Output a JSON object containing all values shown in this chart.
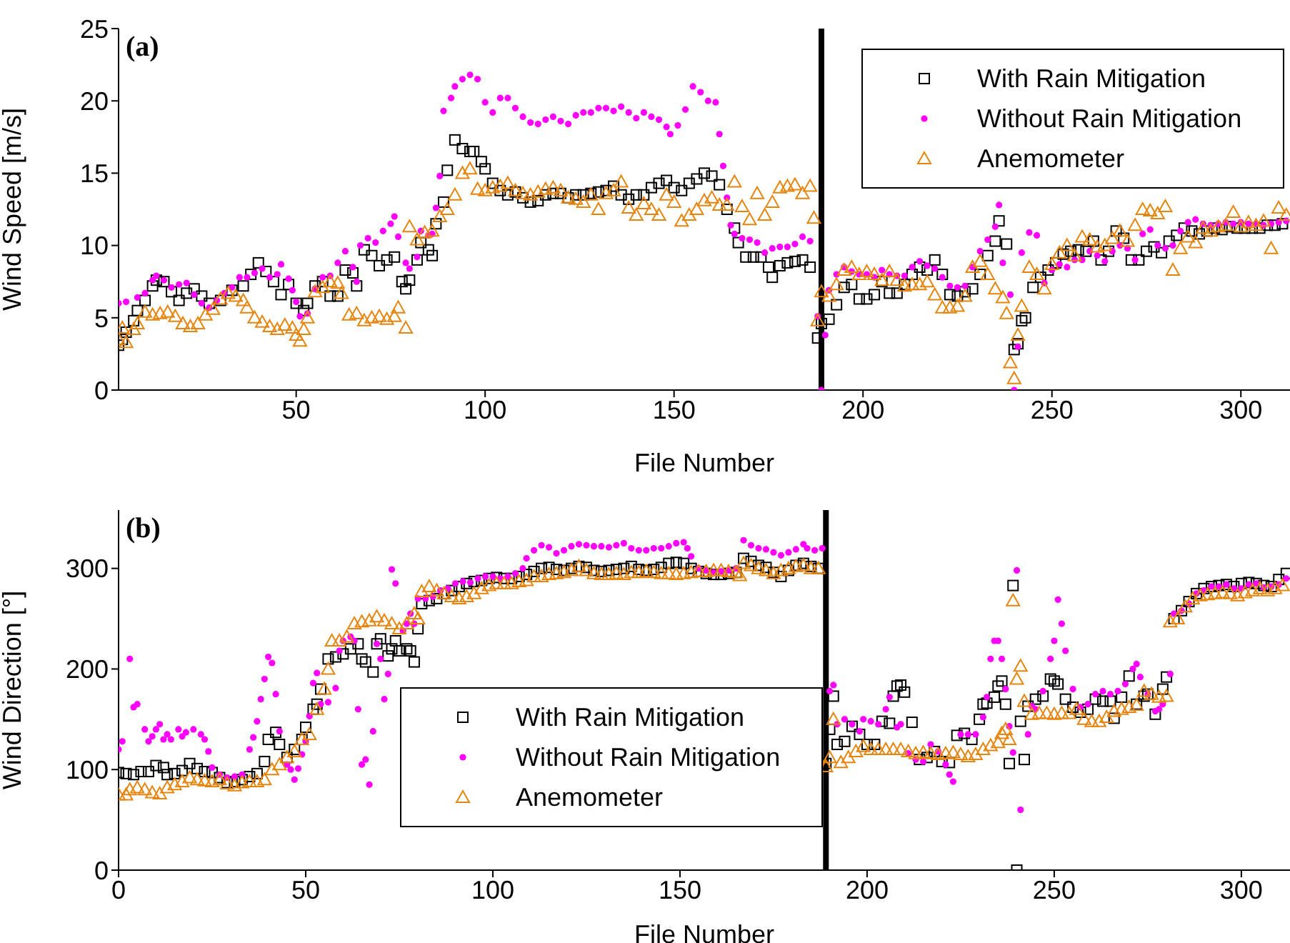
{
  "chart_data": [
    {
      "type": "scatter",
      "xlabel": "File Number",
      "ylabel": "Wind Speed [m/s]",
      "annotations": [
        "(a)"
      ],
      "xlim": [
        3,
        313
      ],
      "xticks": [
        50,
        100,
        150,
        200,
        250,
        300
      ],
      "ylim": [
        0,
        25
      ],
      "yticks": [
        0,
        5,
        10,
        15,
        20,
        25
      ],
      "legend": "top right",
      "ref_lines": [
        {
          "axis": "x",
          "value": 189,
          "color": "#000000"
        }
      ],
      "series": [
        {
          "name": "With Rain Mitigation",
          "color": "#000000",
          "marker": "square",
          "x": [
            3,
            4,
            5,
            7,
            8,
            10,
            12,
            13,
            15,
            17,
            19,
            21,
            23,
            25,
            27,
            30,
            33,
            36,
            38,
            40,
            42,
            44,
            46,
            48,
            50,
            52,
            53,
            55,
            57,
            59,
            61,
            63,
            65,
            66,
            68,
            70,
            72,
            74,
            76,
            78,
            79,
            80,
            82,
            83,
            85,
            86,
            87,
            89,
            90,
            92,
            94,
            96,
            97,
            99,
            100,
            102,
            104,
            106,
            108,
            110,
            112,
            114,
            116,
            118,
            120,
            122,
            124,
            126,
            128,
            130,
            132,
            134,
            136,
            138,
            140,
            142,
            144,
            146,
            148,
            150,
            152,
            154,
            156,
            158,
            160,
            162,
            164,
            166,
            167,
            169,
            171,
            173,
            175,
            176,
            178,
            180,
            182,
            184,
            186,
            188,
            189,
            191,
            193,
            195,
            197,
            199,
            201,
            203,
            205,
            207,
            209,
            211,
            213,
            215,
            217,
            219,
            221,
            223,
            225,
            227,
            229,
            231,
            233,
            235,
            236,
            238,
            240,
            241,
            242,
            243,
            245,
            247,
            249,
            251,
            253,
            255,
            257,
            259,
            261,
            263,
            265,
            267,
            269,
            271,
            273,
            275,
            277,
            279,
            281,
            283,
            285,
            287,
            289,
            291,
            293,
            295,
            297,
            299,
            301,
            303,
            305,
            307,
            309,
            311
          ],
          "values": [
            3.1,
            3.5,
            4,
            4.8,
            5.5,
            6.2,
            7.2,
            7.6,
            7.5,
            6.8,
            6.2,
            6.7,
            7,
            6.5,
            6.0,
            6.2,
            6.9,
            7.2,
            8.0,
            8.8,
            8.2,
            7.5,
            6.6,
            7.3,
            6.0,
            5.5,
            6,
            7.2,
            7.5,
            6.5,
            6.5,
            8.3,
            8.1,
            7.2,
            9.7,
            9.3,
            8.6,
            9.0,
            9.2,
            7.5,
            7.0,
            7.6,
            9.0,
            10.2,
            9.7,
            9.3,
            11.5,
            13,
            15.2,
            17.3,
            16.7,
            16.5,
            16.5,
            15.8,
            15.3,
            14.3,
            13.8,
            13.5,
            13.7,
            13.3,
            13.0,
            13.1,
            13.5,
            13.6,
            13.6,
            13.3,
            13.5,
            13.5,
            13.6,
            13.7,
            13.8,
            14.1,
            13.5,
            13.2,
            13.5,
            13.5,
            14.0,
            14.3,
            14.5,
            14.0,
            13.8,
            14.3,
            14.6,
            15,
            14.8,
            14.2,
            12.5,
            11.2,
            10.2,
            9.2,
            9.2,
            9.2,
            8.5,
            7.8,
            8.6,
            8.8,
            8.9,
            9.0,
            8.5,
            3.6,
            4.6,
            4.9,
            5.9,
            7.1,
            7.3,
            6.3,
            6.3,
            6.6,
            7.5,
            6.7,
            6.7,
            7.3,
            8.0,
            8.5,
            8.3,
            9.0,
            8.0,
            6.6,
            6.5,
            6.8,
            7.0,
            8.0,
            9.3,
            10.3,
            11.7,
            10.1,
            2.8,
            3.2,
            4.8,
            5.0,
            7.1,
            7.8,
            8.3,
            8.8,
            9.4,
            9.6,
            9.7,
            9.6,
            10.3,
            9.0,
            9.6,
            11.0,
            10.5,
            9.0,
            9.0,
            9.6,
            9.9,
            9.5,
            10.3,
            10.7,
            11.2,
            11.0,
            10.8,
            11.0,
            11.2,
            11.1,
            11.3,
            11.2,
            11.2,
            11.2,
            11.2,
            11.4,
            11.4,
            11.5
          ]
        },
        {
          "name": "Without Rain Mitigation",
          "color": "#ff00ff",
          "marker": "circle",
          "x": [
            3,
            5,
            8,
            10,
            12,
            13,
            15,
            17,
            19,
            21,
            23,
            25,
            27,
            29,
            31,
            33,
            35,
            37,
            39,
            41,
            43,
            45,
            46,
            48,
            49,
            50,
            51,
            53,
            55,
            57,
            59,
            61,
            63,
            65,
            66,
            67,
            69,
            71,
            73,
            75,
            76,
            77,
            79,
            80,
            82,
            83,
            85,
            86,
            87,
            88,
            89,
            91,
            92,
            94,
            96,
            98,
            100,
            102,
            104,
            106,
            108,
            110,
            112,
            114,
            116,
            118,
            120,
            122,
            124,
            126,
            128,
            130,
            132,
            134,
            136,
            138,
            140,
            142,
            144,
            146,
            148,
            149,
            151,
            153,
            155,
            157,
            159,
            161,
            162,
            163,
            164,
            165,
            166,
            168,
            170,
            172,
            174,
            176,
            178,
            180,
            182,
            184,
            186,
            188,
            189,
            190,
            191,
            193,
            195,
            197,
            199,
            201,
            203,
            205,
            207,
            209,
            211,
            213,
            215,
            217,
            219,
            221,
            223,
            225,
            227,
            229,
            231,
            233,
            235,
            236,
            237,
            239,
            240,
            241,
            242,
            244,
            246,
            248,
            250,
            252,
            254,
            256,
            258,
            260,
            262,
            264,
            266,
            268,
            270,
            272,
            274,
            276,
            278,
            280,
            282,
            284,
            286,
            288,
            290,
            292,
            294,
            296,
            298,
            300,
            302,
            304,
            306,
            308,
            310,
            312
          ],
          "values": [
            6.0,
            6.1,
            6.4,
            6.7,
            7.6,
            7.9,
            7.6,
            7.1,
            7.3,
            7.4,
            6.6,
            6.0,
            5.7,
            6.2,
            6.7,
            7.1,
            7.8,
            7.8,
            8.1,
            8.4,
            7.8,
            8.0,
            8.7,
            7.7,
            6.9,
            6.1,
            5.1,
            5.3,
            7.0,
            7.8,
            7.9,
            8.8,
            9.6,
            8.5,
            7.5,
            10.0,
            10.5,
            10.2,
            11.0,
            11.5,
            12.0,
            10.6,
            8.8,
            8.4,
            9.2,
            11.0,
            10.7,
            10.8,
            12.6,
            14.8,
            19.3,
            20.2,
            21.0,
            21.5,
            21.8,
            21.5,
            19.9,
            19.2,
            20.2,
            20.2,
            19.5,
            18.9,
            18.5,
            18.4,
            18.7,
            18.9,
            18.6,
            18.4,
            19.0,
            19.2,
            19.2,
            19.5,
            19.5,
            19.3,
            19.6,
            19.2,
            18.8,
            19.2,
            18.9,
            18.7,
            18.2,
            17.7,
            18.3,
            19.4,
            21.0,
            20.6,
            20.0,
            19.9,
            17.7,
            15.5,
            13.3,
            11.4,
            10.8,
            10.5,
            10.4,
            10.2,
            9.5,
            9.8,
            9.9,
            9.9,
            10.1,
            10.6,
            10.3,
            5.1,
            0,
            3.8,
            6.9,
            8.0,
            8.5,
            8.2,
            8.0,
            8.0,
            7.8,
            8.3,
            8.0,
            7.9,
            7.9,
            8.5,
            8.9,
            8.6,
            8.4,
            7.8,
            7.2,
            7.1,
            7.2,
            8.5,
            9.6,
            10.4,
            11.3,
            12.8,
            8.8,
            6.6,
            0,
            3.0,
            9.5,
            10.9,
            10.7,
            7.4,
            8.3,
            8.7,
            8.5,
            9.0,
            9.0,
            9.6,
            9.3,
            8.9,
            9.6,
            10.0,
            9.8,
            9.0,
            10.8,
            11.1,
            10.0,
            9.8,
            10.0,
            11.0,
            11.6,
            11.8,
            11.5,
            11.4,
            11.5,
            11.6,
            11.5,
            11.6,
            11.5,
            11.5,
            11.4,
            11.5,
            11.6,
            11.7
          ]
        },
        {
          "name": "Anemometer",
          "color": "#e6850e",
          "marker": "triangle",
          "x": [
            3,
            4,
            5,
            7,
            8,
            10,
            12,
            14,
            16,
            18,
            20,
            22,
            24,
            26,
            28,
            30,
            32,
            34,
            36,
            37,
            39,
            41,
            43,
            45,
            47,
            49,
            50,
            51,
            52,
            53,
            55,
            57,
            59,
            61,
            62,
            64,
            66,
            68,
            70,
            72,
            74,
            76,
            77,
            79,
            80,
            82,
            84,
            86,
            88,
            90,
            92,
            94,
            96,
            98,
            100,
            102,
            104,
            106,
            108,
            110,
            112,
            114,
            116,
            118,
            120,
            122,
            124,
            126,
            128,
            130,
            132,
            134,
            136,
            138,
            140,
            142,
            144,
            146,
            148,
            150,
            152,
            154,
            156,
            158,
            160,
            162,
            164,
            166,
            168,
            170,
            172,
            174,
            176,
            178,
            180,
            182,
            184,
            186,
            187,
            188,
            189,
            191,
            193,
            195,
            197,
            199,
            201,
            203,
            205,
            207,
            209,
            211,
            213,
            215,
            217,
            219,
            221,
            223,
            225,
            227,
            229,
            231,
            233,
            235,
            237,
            238,
            239,
            240,
            241,
            242,
            244,
            246,
            248,
            250,
            252,
            254,
            256,
            258,
            260,
            262,
            264,
            266,
            268,
            270,
            272,
            274,
            276,
            278,
            280,
            282,
            284,
            286,
            288,
            290,
            292,
            294,
            296,
            298,
            300,
            302,
            304,
            306,
            308,
            310,
            312
          ],
          "values": [
            3.5,
            4.3,
            3.3,
            4.2,
            4.6,
            5.4,
            5.2,
            5.3,
            5.4,
            5.1,
            4.6,
            4.4,
            4.6,
            5.2,
            5.6,
            6.3,
            6.7,
            6.5,
            6.2,
            5.7,
            5.0,
            4.7,
            4.4,
            4.2,
            4.5,
            4.3,
            3.8,
            3.4,
            4.2,
            5.0,
            6.8,
            7.1,
            7.5,
            7.4,
            6.7,
            5.2,
            5.3,
            4.8,
            5.0,
            5.1,
            4.9,
            5.1,
            5.7,
            4.3,
            11.3,
            10.4,
            10.9,
            11.0,
            12.0,
            12.5,
            13.5,
            15.0,
            15.3,
            13.9,
            13.8,
            14.0,
            14.1,
            14.3,
            13.8,
            13.6,
            13.5,
            13.7,
            13.9,
            14.0,
            13.8,
            13.3,
            13.2,
            13.0,
            13.5,
            12.5,
            13.6,
            13.8,
            14.4,
            12.6,
            12.1,
            12.9,
            12.5,
            12.1,
            13.5,
            13.0,
            11.7,
            12.1,
            12.5,
            13.1,
            13.3,
            12.8,
            12.8,
            14.4,
            12.7,
            11.8,
            13.6,
            12.1,
            13.0,
            14.0,
            14.1,
            14.2,
            13.6,
            14.1,
            11.9,
            4.8,
            6.8,
            6.5,
            7.3,
            8.3,
            8.5,
            8.0,
            8.2,
            8.0,
            7.6,
            8.2,
            7.6,
            7.2,
            7.3,
            7.3,
            7.5,
            6.6,
            5.7,
            5.7,
            5.8,
            6.5,
            8.5,
            8.9,
            8.0,
            7.0,
            6.4,
            5.3,
            1.9,
            0.8,
            3.8,
            5.8,
            8.5,
            8.0,
            7.0,
            8.7,
            9.5,
            10.0,
            9.3,
            10.6,
            10.4,
            9.9,
            10.0,
            10.5,
            11.0,
            10.3,
            11.4,
            12.5,
            12.4,
            12.2,
            12.7,
            8.3,
            9.8,
            10.6,
            10.2,
            11.2,
            11.0,
            11.3,
            11.4,
            12.3,
            11.3,
            11.6,
            11.4,
            11.7,
            9.8,
            12.6,
            12.1
          ]
        }
      ]
    },
    {
      "type": "scatter",
      "xlabel": "File Number",
      "ylabel": "Wind Direction [°]",
      "annotations": [
        "(b)"
      ],
      "xlim": [
        0,
        313
      ],
      "xticks": [
        0,
        50,
        100,
        150,
        200,
        250,
        300
      ],
      "ylim": [
        0,
        358
      ],
      "yticks": [
        0,
        100,
        200,
        300
      ],
      "legend": "bottom",
      "ref_lines": [
        {
          "axis": "x",
          "value": 189,
          "color": "#000000"
        }
      ],
      "series": [
        {
          "name": "With Rain Mitigation",
          "color": "#000000",
          "marker": "square",
          "x": [
            0,
            2,
            4,
            6,
            8,
            10,
            12,
            13,
            15,
            17,
            19,
            21,
            23,
            25,
            27,
            29,
            31,
            33,
            35,
            37,
            39,
            40,
            42,
            43,
            45,
            47,
            49,
            50,
            52,
            53,
            54,
            56,
            58,
            60,
            62,
            64,
            65,
            66,
            68,
            69,
            70,
            72,
            73,
            74,
            75,
            77,
            78,
            79,
            80,
            81,
            83,
            85,
            87,
            89,
            91,
            93,
            95,
            97,
            99,
            101,
            103,
            105,
            107,
            109,
            111,
            113,
            115,
            117,
            119,
            121,
            123,
            125,
            127,
            129,
            131,
            133,
            135,
            137,
            139,
            141,
            143,
            145,
            147,
            149,
            151,
            153,
            155,
            157,
            159,
            161,
            163,
            165,
            167,
            169,
            171,
            173,
            175,
            177,
            179,
            181,
            183,
            185,
            187,
            189,
            190,
            191,
            192,
            194,
            196,
            198,
            200,
            202,
            204,
            206,
            207,
            208,
            209,
            210,
            212,
            214,
            216,
            218,
            220,
            222,
            224,
            226,
            228,
            230,
            231,
            232,
            234,
            235,
            236,
            237,
            238,
            239,
            240,
            241,
            242,
            243,
            245,
            247,
            249,
            250,
            251,
            253,
            255,
            257,
            259,
            261,
            263,
            265,
            266,
            268,
            270,
            272,
            274,
            275,
            277,
            279,
            280,
            282,
            284,
            286,
            288,
            290,
            292,
            294,
            296,
            298,
            300,
            302,
            304,
            306,
            308,
            310,
            312
          ],
          "values": [
            97,
            96,
            95,
            98,
            98,
            104,
            102,
            95,
            96,
            99,
            106,
            101,
            98,
            97,
            92,
            87,
            88,
            90,
            93,
            96,
            108,
            130,
            137,
            125,
            112,
            120,
            130,
            142,
            160,
            165,
            180,
            210,
            212,
            215,
            220,
            225,
            210,
            207,
            197,
            225,
            230,
            213,
            220,
            228,
            218,
            220,
            218,
            207,
            240,
            265,
            268,
            270,
            275,
            278,
            282,
            285,
            287,
            288,
            290,
            291,
            290,
            290,
            292,
            294,
            297,
            300,
            301,
            299,
            298,
            300,
            302,
            301,
            298,
            297,
            298,
            299,
            300,
            302,
            299,
            298,
            299,
            301,
            305,
            306,
            305,
            300,
            297,
            295,
            294,
            294,
            295,
            296,
            310,
            307,
            303,
            301,
            296,
            292,
            298,
            303,
            305,
            302,
            300,
            106,
            140,
            173,
            125,
            128,
            143,
            135,
            125,
            125,
            148,
            146,
            173,
            183,
            184,
            177,
            147,
            110,
            112,
            118,
            108,
            107,
            134,
            136,
            130,
            150,
            165,
            166,
            172,
            183,
            188,
            165,
            106,
            283,
            0,
            148,
            110,
            163,
            170,
            173,
            190,
            188,
            185,
            170,
            162,
            157,
            160,
            170,
            168,
            168,
            151,
            172,
            193,
            165,
            173,
            175,
            155,
            180,
            192,
            250,
            258,
            267,
            275,
            280,
            282,
            283,
            284,
            282,
            285,
            286,
            285,
            283,
            282,
            289,
            295
          ]
        },
        {
          "name": "Without Rain Mitigation",
          "color": "#ff00ff",
          "marker": "circle",
          "x": [
            0,
            1,
            3,
            4,
            5,
            7,
            8,
            9,
            10,
            11,
            12,
            13,
            14,
            16,
            17,
            18,
            20,
            22,
            23,
            24,
            25,
            27,
            29,
            31,
            33,
            35,
            36,
            37,
            38,
            39,
            40,
            41,
            42,
            43,
            45,
            46,
            47,
            48,
            49,
            50,
            51,
            52,
            53,
            54,
            56,
            58,
            59,
            60,
            62,
            63,
            64,
            65,
            66,
            67,
            68,
            69,
            70,
            71,
            72,
            73,
            74,
            76,
            77,
            78,
            79,
            80,
            82,
            84,
            86,
            88,
            90,
            92,
            94,
            96,
            98,
            100,
            102,
            104,
            106,
            108,
            109,
            111,
            113,
            115,
            117,
            119,
            121,
            123,
            125,
            127,
            129,
            131,
            133,
            135,
            137,
            139,
            141,
            143,
            145,
            147,
            149,
            151,
            152,
            153,
            155,
            157,
            159,
            161,
            163,
            165,
            167,
            169,
            171,
            173,
            175,
            177,
            179,
            181,
            183,
            184,
            186,
            188,
            190,
            191,
            192,
            194,
            196,
            198,
            199,
            201,
            203,
            205,
            206,
            208,
            209,
            211,
            213,
            215,
            217,
            219,
            221,
            222,
            223,
            225,
            227,
            229,
            231,
            232,
            233,
            234,
            235,
            236,
            237,
            238,
            239,
            240,
            241,
            243,
            244,
            245,
            247,
            249,
            250,
            251,
            252,
            253,
            255,
            257,
            259,
            261,
            263,
            265,
            267,
            269,
            271,
            272,
            273,
            275,
            277,
            278,
            279,
            281,
            282,
            284,
            286,
            288,
            290,
            292,
            294,
            296,
            298,
            300,
            302,
            304,
            306,
            308,
            310,
            312
          ],
          "values": [
            120,
            128,
            210,
            162,
            165,
            140,
            128,
            133,
            140,
            145,
            130,
            135,
            130,
            140,
            133,
            137,
            140,
            135,
            130,
            118,
            102,
            95,
            92,
            93,
            95,
            120,
            132,
            148,
            170,
            190,
            212,
            206,
            175,
            138,
            105,
            100,
            90,
            101,
            115,
            128,
            153,
            186,
            196,
            165,
            167,
            181,
            218,
            228,
            232,
            228,
            160,
            105,
            110,
            85,
            138,
            225,
            210,
            170,
            195,
            299,
            285,
            238,
            245,
            255,
            245,
            270,
            270,
            272,
            278,
            280,
            285,
            287,
            286,
            290,
            292,
            292,
            290,
            292,
            295,
            300,
            310,
            318,
            323,
            321,
            315,
            318,
            322,
            324,
            323,
            322,
            322,
            321,
            323,
            325,
            320,
            318,
            318,
            320,
            320,
            322,
            325,
            326,
            320,
            312,
            300,
            298,
            296,
            297,
            298,
            300,
            328,
            323,
            320,
            319,
            316,
            313,
            316,
            319,
            324,
            320,
            318,
            320,
            178,
            184,
            145,
            150,
            145,
            138,
            150,
            148,
            145,
            160,
            172,
            142,
            145,
            116,
            110,
            108,
            125,
            118,
            105,
            95,
            88,
            135,
            135,
            135,
            152,
            172,
            210,
            228,
            228,
            210,
            180,
            143,
            117,
            298,
            60,
            135,
            163,
            160,
            178,
            210,
            228,
            269,
            245,
            218,
            180,
            162,
            165,
            175,
            178,
            175,
            178,
            185,
            200,
            205,
            192,
            175,
            158,
            160,
            165,
            195,
            255,
            258,
            265,
            275,
            278,
            282,
            282,
            284,
            280,
            280,
            284,
            285,
            281,
            282,
            284,
            290
          ]
        },
        {
          "name": "Anemometer",
          "color": "#e6850e",
          "marker": "triangle",
          "x": [
            0,
            2,
            3,
            5,
            7,
            9,
            11,
            13,
            15,
            17,
            19,
            21,
            23,
            25,
            27,
            29,
            31,
            33,
            35,
            37,
            39,
            41,
            43,
            45,
            47,
            49,
            51,
            53,
            55,
            56,
            57,
            59,
            61,
            63,
            65,
            67,
            69,
            71,
            73,
            75,
            77,
            79,
            80,
            81,
            83,
            85,
            87,
            89,
            91,
            93,
            95,
            97,
            99,
            101,
            103,
            105,
            107,
            109,
            111,
            113,
            115,
            117,
            119,
            121,
            123,
            125,
            127,
            129,
            131,
            133,
            135,
            137,
            139,
            141,
            143,
            145,
            147,
            149,
            151,
            153,
            155,
            157,
            159,
            161,
            163,
            165,
            166,
            167,
            169,
            171,
            173,
            175,
            177,
            179,
            181,
            183,
            185,
            187,
            189,
            190,
            191,
            193,
            195,
            197,
            199,
            201,
            203,
            205,
            207,
            209,
            211,
            213,
            215,
            217,
            219,
            221,
            223,
            225,
            227,
            229,
            231,
            233,
            235,
            236,
            237,
            238,
            239,
            240,
            241,
            242,
            244,
            246,
            248,
            250,
            252,
            254,
            256,
            258,
            260,
            262,
            264,
            266,
            268,
            270,
            272,
            274,
            276,
            278,
            280,
            281,
            283,
            285,
            287,
            289,
            291,
            293,
            295,
            297,
            299,
            301,
            303,
            305,
            307,
            309,
            311
          ],
          "values": [
            75,
            75,
            80,
            82,
            80,
            77,
            76,
            82,
            85,
            88,
            92,
            90,
            89,
            88,
            90,
            86,
            84,
            87,
            88,
            88,
            90,
            100,
            105,
            112,
            118,
            130,
            135,
            160,
            180,
            200,
            228,
            228,
            232,
            245,
            247,
            248,
            252,
            248,
            245,
            240,
            245,
            255,
            250,
            277,
            282,
            278,
            275,
            272,
            270,
            272,
            275,
            280,
            283,
            285,
            285,
            285,
            287,
            288,
            292,
            292,
            294,
            295,
            296,
            298,
            302,
            298,
            295,
            294,
            294,
            295,
            294,
            296,
            296,
            297,
            296,
            295,
            295,
            294,
            295,
            296,
            297,
            297,
            298,
            298,
            297,
            296,
            293,
            305,
            303,
            300,
            298,
            295,
            298,
            300,
            302,
            303,
            300,
            300,
            103,
            112,
            150,
            107,
            112,
            118,
            123,
            120,
            120,
            120,
            120,
            120,
            118,
            116,
            117,
            116,
            115,
            116,
            117,
            115,
            113,
            115,
            120,
            124,
            127,
            136,
            140,
            130,
            268,
            190,
            203,
            168,
            155,
            156,
            156,
            155,
            156,
            156,
            160,
            150,
            148,
            148,
            152,
            158,
            160,
            162,
            164,
            178,
            175,
            172,
            173,
            247,
            250,
            262,
            270,
            273,
            274,
            275,
            276,
            275,
            273,
            276,
            278,
            280,
            278,
            280,
            283
          ]
        }
      ]
    }
  ]
}
